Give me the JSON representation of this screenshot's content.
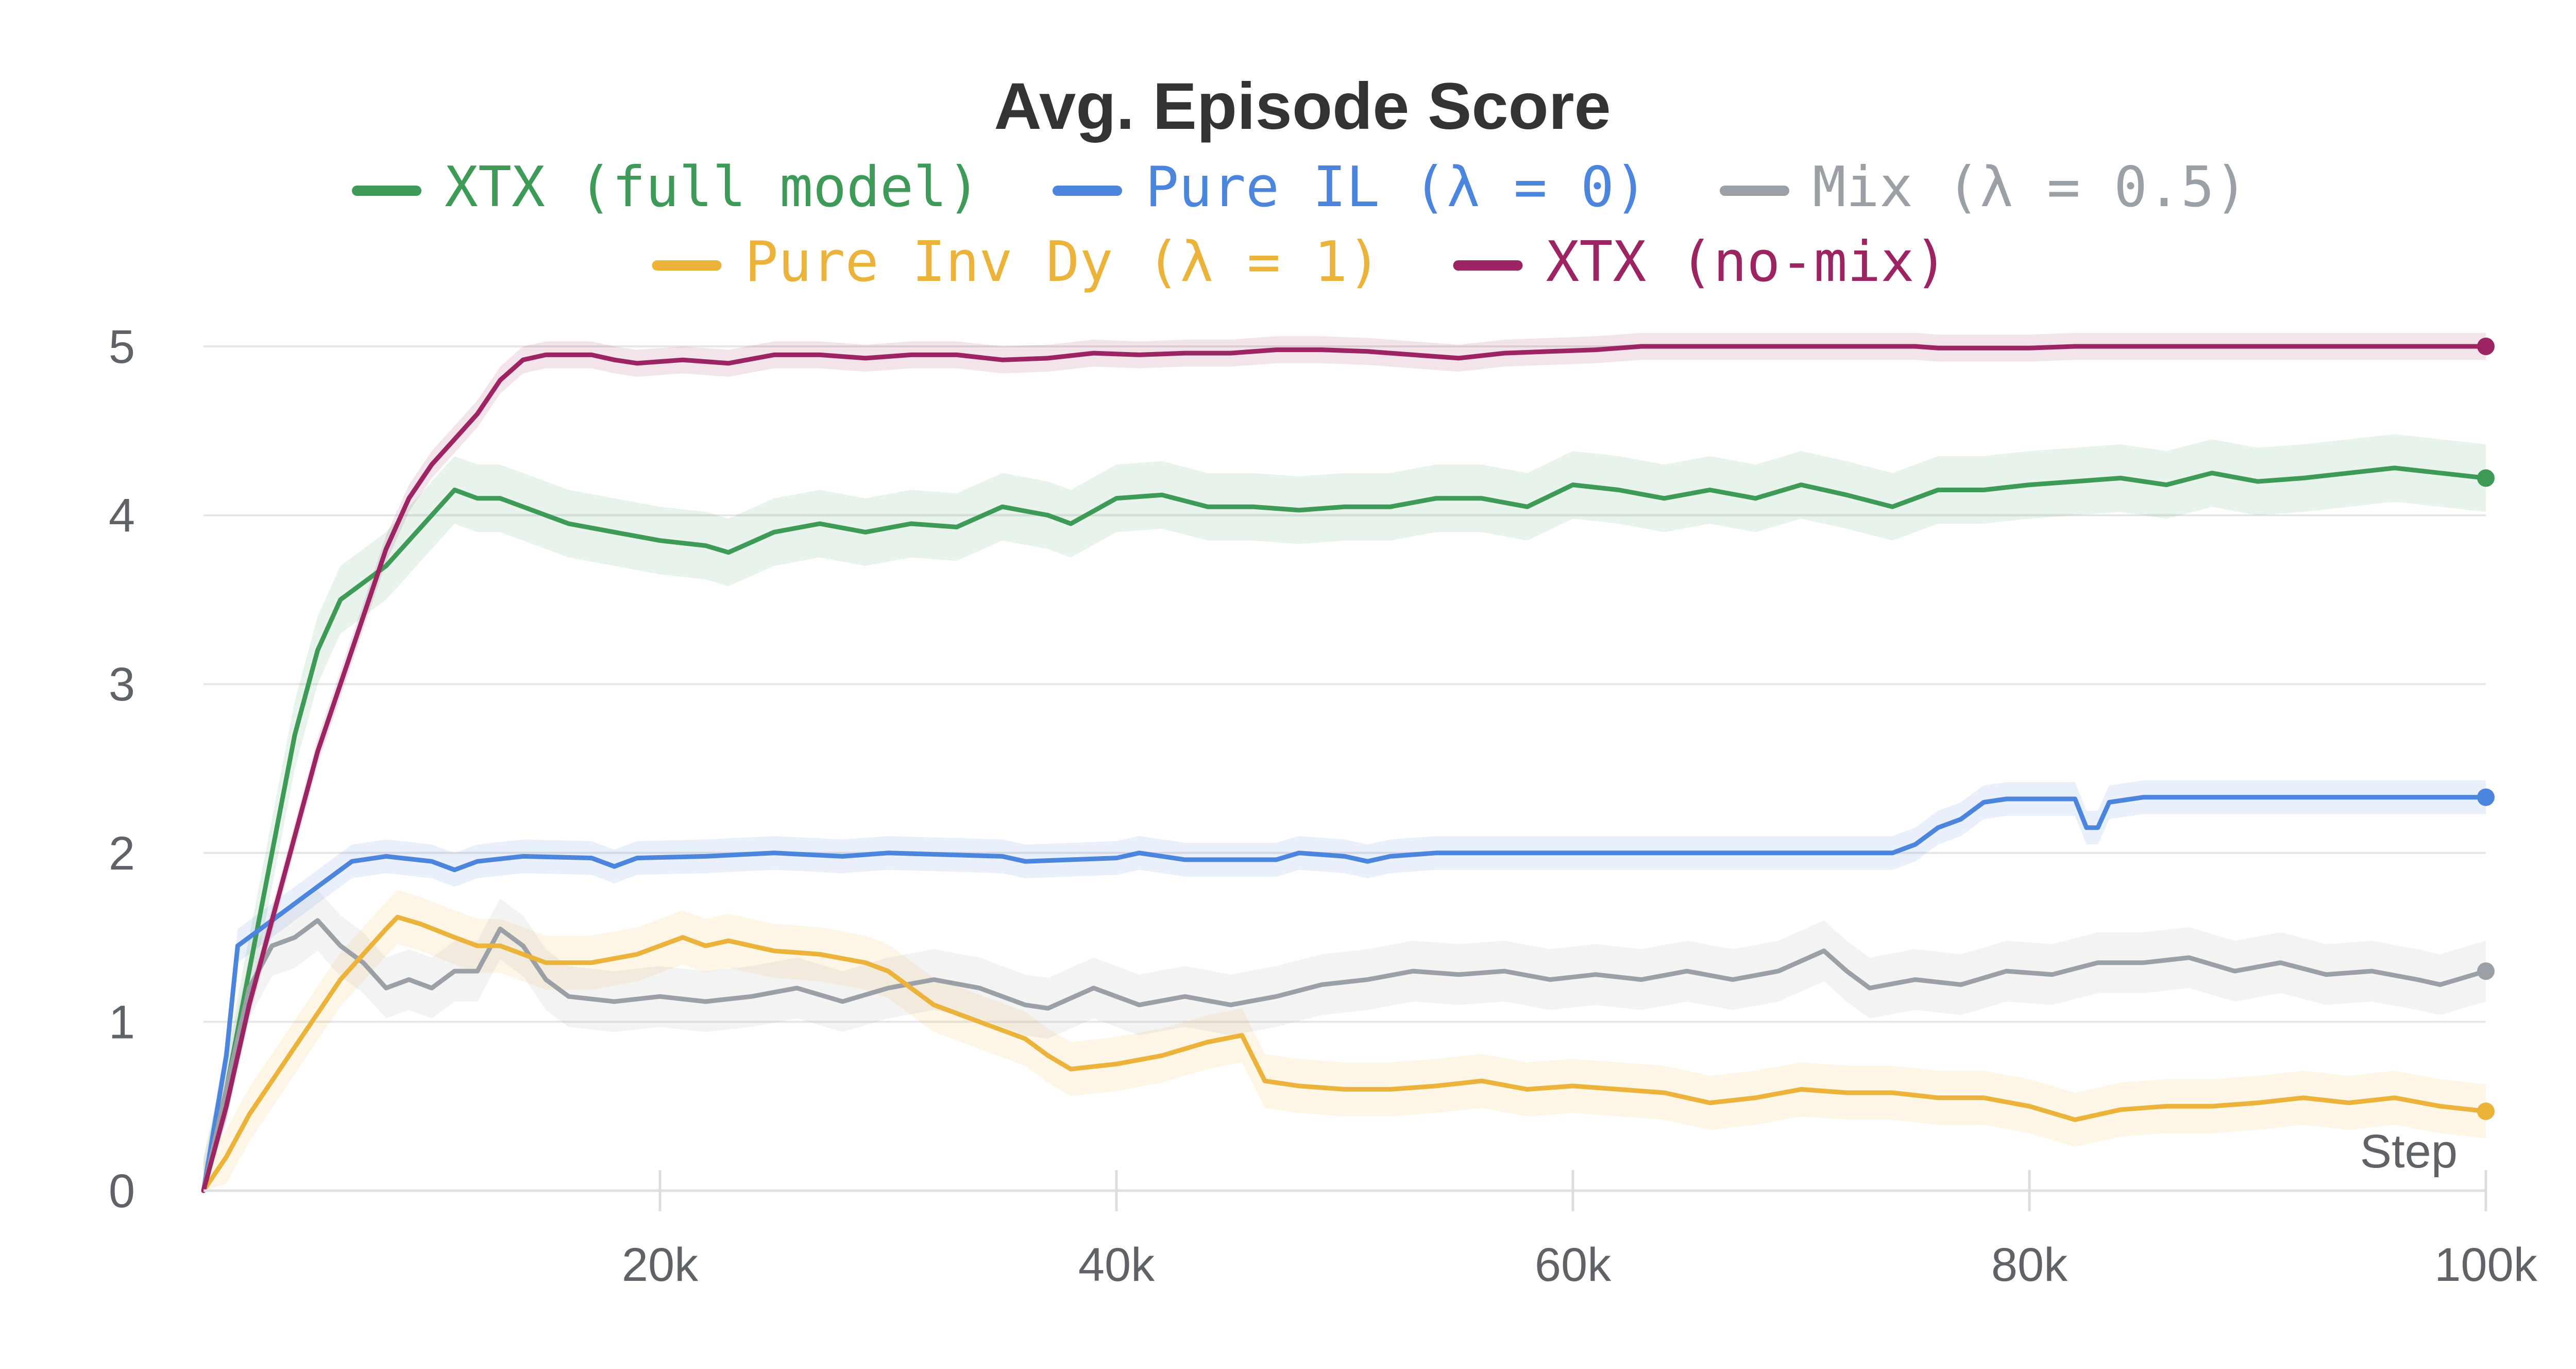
{
  "chart_data": {
    "type": "line",
    "title": "Avg. Episode Score",
    "xlabel": "Step",
    "ylabel": "",
    "xlim": [
      0,
      100000
    ],
    "ylim": [
      0,
      5
    ],
    "grid": true,
    "legend_position": "top",
    "x_ticks": [
      20000,
      40000,
      60000,
      80000,
      100000
    ],
    "x_tick_labels": [
      "20k",
      "40k",
      "60k",
      "80k",
      "100k"
    ],
    "y_ticks": [
      0,
      1,
      2,
      3,
      4,
      5
    ],
    "y_tick_labels": [
      "0",
      "1",
      "2",
      "3",
      "4",
      "5"
    ],
    "series": [
      {
        "name": "XTX (full model)",
        "color": "#3d9a57",
        "band": 0.2,
        "points": [
          [
            0,
            0
          ],
          [
            1000,
            0.6
          ],
          [
            2000,
            1.3
          ],
          [
            3000,
            2.0
          ],
          [
            4000,
            2.7
          ],
          [
            5000,
            3.2
          ],
          [
            6000,
            3.5
          ],
          [
            7000,
            3.6
          ],
          [
            8000,
            3.7
          ],
          [
            9000,
            3.85
          ],
          [
            10000,
            4.0
          ],
          [
            11000,
            4.15
          ],
          [
            12000,
            4.1
          ],
          [
            13000,
            4.1
          ],
          [
            14000,
            4.05
          ],
          [
            15000,
            4.0
          ],
          [
            16000,
            3.95
          ],
          [
            18000,
            3.9
          ],
          [
            20000,
            3.85
          ],
          [
            22000,
            3.82
          ],
          [
            23000,
            3.78
          ],
          [
            25000,
            3.9
          ],
          [
            27000,
            3.95
          ],
          [
            29000,
            3.9
          ],
          [
            31000,
            3.95
          ],
          [
            33000,
            3.93
          ],
          [
            35000,
            4.05
          ],
          [
            37000,
            4.0
          ],
          [
            38000,
            3.95
          ],
          [
            40000,
            4.1
          ],
          [
            42000,
            4.12
          ],
          [
            44000,
            4.05
          ],
          [
            46000,
            4.05
          ],
          [
            48000,
            4.03
          ],
          [
            50000,
            4.05
          ],
          [
            52000,
            4.05
          ],
          [
            54000,
            4.1
          ],
          [
            56000,
            4.1
          ],
          [
            58000,
            4.05
          ],
          [
            60000,
            4.18
          ],
          [
            62000,
            4.15
          ],
          [
            64000,
            4.1
          ],
          [
            66000,
            4.15
          ],
          [
            68000,
            4.1
          ],
          [
            70000,
            4.18
          ],
          [
            72000,
            4.12
          ],
          [
            74000,
            4.05
          ],
          [
            76000,
            4.15
          ],
          [
            78000,
            4.15
          ],
          [
            80000,
            4.18
          ],
          [
            82000,
            4.2
          ],
          [
            84000,
            4.22
          ],
          [
            86000,
            4.18
          ],
          [
            88000,
            4.25
          ],
          [
            90000,
            4.2
          ],
          [
            92000,
            4.22
          ],
          [
            94000,
            4.25
          ],
          [
            96000,
            4.28
          ],
          [
            98000,
            4.25
          ],
          [
            100000,
            4.22
          ]
        ]
      },
      {
        "name": "Pure IL (λ = 0)",
        "color": "#4c85dd",
        "band": 0.1,
        "points": [
          [
            0,
            0
          ],
          [
            1000,
            0.8
          ],
          [
            1500,
            1.45
          ],
          [
            3000,
            1.6
          ],
          [
            5000,
            1.8
          ],
          [
            6500,
            1.95
          ],
          [
            8000,
            1.98
          ],
          [
            10000,
            1.95
          ],
          [
            11000,
            1.9
          ],
          [
            12000,
            1.95
          ],
          [
            14000,
            1.98
          ],
          [
            17000,
            1.97
          ],
          [
            18000,
            1.92
          ],
          [
            19000,
            1.97
          ],
          [
            22000,
            1.98
          ],
          [
            25000,
            2.0
          ],
          [
            28000,
            1.98
          ],
          [
            30000,
            2.0
          ],
          [
            35000,
            1.98
          ],
          [
            36000,
            1.95
          ],
          [
            40000,
            1.97
          ],
          [
            41000,
            2.0
          ],
          [
            43000,
            1.96
          ],
          [
            47000,
            1.96
          ],
          [
            48000,
            2.0
          ],
          [
            50000,
            1.98
          ],
          [
            51000,
            1.95
          ],
          [
            52000,
            1.98
          ],
          [
            54000,
            2.0
          ],
          [
            60000,
            2.0
          ],
          [
            70000,
            2.0
          ],
          [
            74000,
            2.0
          ],
          [
            75000,
            2.05
          ],
          [
            76000,
            2.15
          ],
          [
            77000,
            2.2
          ],
          [
            78000,
            2.3
          ],
          [
            79000,
            2.32
          ],
          [
            82000,
            2.32
          ],
          [
            82500,
            2.15
          ],
          [
            83000,
            2.15
          ],
          [
            83500,
            2.3
          ],
          [
            85000,
            2.33
          ],
          [
            90000,
            2.33
          ],
          [
            95000,
            2.33
          ],
          [
            100000,
            2.33
          ]
        ]
      },
      {
        "name": "Mix (λ = 0.5)",
        "color": "#9aa0a6",
        "band": 0.18,
        "points": [
          [
            0,
            0
          ],
          [
            1000,
            0.6
          ],
          [
            2000,
            1.2
          ],
          [
            3000,
            1.45
          ],
          [
            4000,
            1.5
          ],
          [
            5000,
            1.6
          ],
          [
            6000,
            1.45
          ],
          [
            7000,
            1.35
          ],
          [
            8000,
            1.2
          ],
          [
            9000,
            1.25
          ],
          [
            10000,
            1.2
          ],
          [
            11000,
            1.3
          ],
          [
            12000,
            1.3
          ],
          [
            13000,
            1.55
          ],
          [
            14000,
            1.45
          ],
          [
            15000,
            1.25
          ],
          [
            16000,
            1.15
          ],
          [
            18000,
            1.12
          ],
          [
            20000,
            1.15
          ],
          [
            22000,
            1.12
          ],
          [
            24000,
            1.15
          ],
          [
            26000,
            1.2
          ],
          [
            28000,
            1.12
          ],
          [
            30000,
            1.2
          ],
          [
            32000,
            1.25
          ],
          [
            34000,
            1.2
          ],
          [
            36000,
            1.1
          ],
          [
            37000,
            1.08
          ],
          [
            39000,
            1.2
          ],
          [
            41000,
            1.1
          ],
          [
            43000,
            1.15
          ],
          [
            45000,
            1.1
          ],
          [
            47000,
            1.15
          ],
          [
            49000,
            1.22
          ],
          [
            51000,
            1.25
          ],
          [
            53000,
            1.3
          ],
          [
            55000,
            1.28
          ],
          [
            57000,
            1.3
          ],
          [
            59000,
            1.25
          ],
          [
            61000,
            1.28
          ],
          [
            63000,
            1.25
          ],
          [
            65000,
            1.3
          ],
          [
            67000,
            1.25
          ],
          [
            69000,
            1.3
          ],
          [
            71000,
            1.42
          ],
          [
            72000,
            1.3
          ],
          [
            73000,
            1.2
          ],
          [
            75000,
            1.25
          ],
          [
            77000,
            1.22
          ],
          [
            79000,
            1.3
          ],
          [
            81000,
            1.28
          ],
          [
            83000,
            1.35
          ],
          [
            85000,
            1.35
          ],
          [
            87000,
            1.38
          ],
          [
            89000,
            1.3
          ],
          [
            91000,
            1.35
          ],
          [
            93000,
            1.28
          ],
          [
            95000,
            1.3
          ],
          [
            97000,
            1.25
          ],
          [
            98000,
            1.22
          ],
          [
            100000,
            1.3
          ]
        ]
      },
      {
        "name": "Pure Inv Dy (λ = 1)",
        "color": "#ecb33b",
        "band": 0.16,
        "points": [
          [
            0,
            0
          ],
          [
            1000,
            0.2
          ],
          [
            2000,
            0.45
          ],
          [
            3000,
            0.65
          ],
          [
            4000,
            0.85
          ],
          [
            5000,
            1.05
          ],
          [
            6000,
            1.25
          ],
          [
            7000,
            1.4
          ],
          [
            8000,
            1.55
          ],
          [
            8500,
            1.62
          ],
          [
            9500,
            1.58
          ],
          [
            11000,
            1.5
          ],
          [
            12000,
            1.45
          ],
          [
            13000,
            1.45
          ],
          [
            14000,
            1.4
          ],
          [
            15000,
            1.35
          ],
          [
            17000,
            1.35
          ],
          [
            19000,
            1.4
          ],
          [
            20000,
            1.45
          ],
          [
            21000,
            1.5
          ],
          [
            22000,
            1.45
          ],
          [
            23000,
            1.48
          ],
          [
            25000,
            1.42
          ],
          [
            27000,
            1.4
          ],
          [
            29000,
            1.35
          ],
          [
            30000,
            1.3
          ],
          [
            31000,
            1.2
          ],
          [
            32000,
            1.1
          ],
          [
            34000,
            1.0
          ],
          [
            36000,
            0.9
          ],
          [
            37000,
            0.8
          ],
          [
            38000,
            0.72
          ],
          [
            40000,
            0.75
          ],
          [
            42000,
            0.8
          ],
          [
            44000,
            0.88
          ],
          [
            45500,
            0.92
          ],
          [
            46500,
            0.65
          ],
          [
            48000,
            0.62
          ],
          [
            50000,
            0.6
          ],
          [
            52000,
            0.6
          ],
          [
            54000,
            0.62
          ],
          [
            56000,
            0.65
          ],
          [
            58000,
            0.6
          ],
          [
            60000,
            0.62
          ],
          [
            62000,
            0.6
          ],
          [
            64000,
            0.58
          ],
          [
            66000,
            0.52
          ],
          [
            68000,
            0.55
          ],
          [
            70000,
            0.6
          ],
          [
            72000,
            0.58
          ],
          [
            74000,
            0.58
          ],
          [
            76000,
            0.55
          ],
          [
            78000,
            0.55
          ],
          [
            80000,
            0.5
          ],
          [
            82000,
            0.42
          ],
          [
            84000,
            0.48
          ],
          [
            86000,
            0.5
          ],
          [
            88000,
            0.5
          ],
          [
            90000,
            0.52
          ],
          [
            92000,
            0.55
          ],
          [
            94000,
            0.52
          ],
          [
            96000,
            0.55
          ],
          [
            98000,
            0.5
          ],
          [
            100000,
            0.47
          ]
        ]
      },
      {
        "name": "XTX (no-mix)",
        "color": "#9c2463",
        "band": 0.08,
        "points": [
          [
            0,
            0
          ],
          [
            1000,
            0.5
          ],
          [
            2000,
            1.1
          ],
          [
            3000,
            1.6
          ],
          [
            4000,
            2.1
          ],
          [
            5000,
            2.6
          ],
          [
            6000,
            3.0
          ],
          [
            7000,
            3.4
          ],
          [
            8000,
            3.8
          ],
          [
            9000,
            4.1
          ],
          [
            10000,
            4.3
          ],
          [
            11000,
            4.45
          ],
          [
            12000,
            4.6
          ],
          [
            13000,
            4.8
          ],
          [
            14000,
            4.92
          ],
          [
            15000,
            4.95
          ],
          [
            17000,
            4.95
          ],
          [
            18000,
            4.92
          ],
          [
            19000,
            4.9
          ],
          [
            21000,
            4.92
          ],
          [
            23000,
            4.9
          ],
          [
            25000,
            4.95
          ],
          [
            27000,
            4.95
          ],
          [
            29000,
            4.93
          ],
          [
            31000,
            4.95
          ],
          [
            33000,
            4.95
          ],
          [
            35000,
            4.92
          ],
          [
            37000,
            4.93
          ],
          [
            39000,
            4.96
          ],
          [
            41000,
            4.95
          ],
          [
            43000,
            4.96
          ],
          [
            45000,
            4.96
          ],
          [
            47000,
            4.98
          ],
          [
            49000,
            4.98
          ],
          [
            51000,
            4.97
          ],
          [
            53000,
            4.95
          ],
          [
            55000,
            4.93
          ],
          [
            57000,
            4.96
          ],
          [
            59000,
            4.97
          ],
          [
            61000,
            4.98
          ],
          [
            63000,
            5.0
          ],
          [
            70000,
            5.0
          ],
          [
            75000,
            5.0
          ],
          [
            76000,
            4.99
          ],
          [
            80000,
            4.99
          ],
          [
            82000,
            5.0
          ],
          [
            90000,
            5.0
          ],
          [
            95000,
            5.0
          ],
          [
            100000,
            5.0
          ]
        ]
      }
    ]
  }
}
